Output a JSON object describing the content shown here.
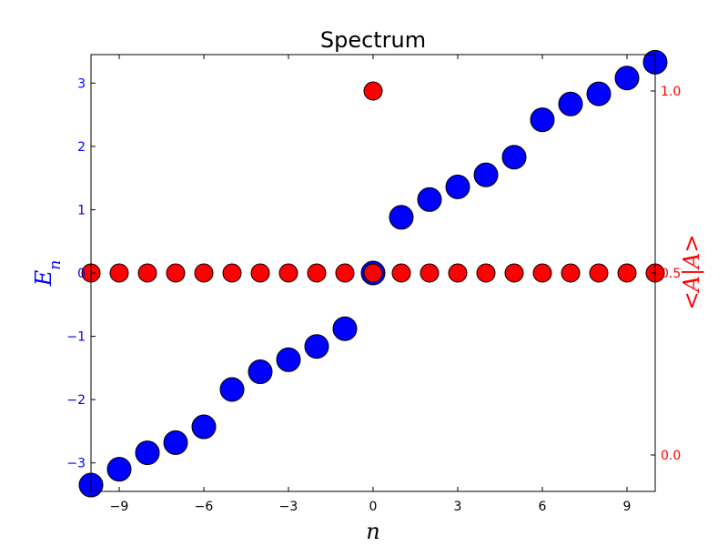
{
  "chart_data": {
    "type": "scatter",
    "title": "Spectrum",
    "xlabel": "n",
    "ylabel_left": {
      "base": "E",
      "sub": "n"
    },
    "ylabel_right": "<A|A>",
    "xlim": [
      -10,
      10
    ],
    "ylim_left": [
      -3.45,
      3.45
    ],
    "ylim_right": [
      -0.1,
      1.1
    ],
    "xticks": [
      -9,
      -6,
      -3,
      0,
      3,
      6,
      9
    ],
    "xtick_labels": [
      "−9",
      "−6",
      "−3",
      "0",
      "3",
      "6",
      "9"
    ],
    "yticks_left": [
      -3,
      -2,
      -1,
      0,
      1,
      2,
      3
    ],
    "ytick_labels_left": [
      "−3",
      "−2",
      "−1",
      "0",
      "1",
      "2",
      "3"
    ],
    "yticks_right": [
      0.0,
      0.5,
      1.0
    ],
    "ytick_labels_right": [
      "0.0",
      "0.5",
      "1.0"
    ],
    "grid": false,
    "series": [
      {
        "axis": "left",
        "color": "#0000ff",
        "x": [
          -10,
          -9,
          -8,
          -7,
          -6,
          -5,
          -4,
          -3,
          -2,
          -1,
          0,
          1,
          2,
          3,
          4,
          5,
          6,
          7,
          8,
          9,
          10
        ],
        "y": [
          -3.35,
          -3.1,
          -2.84,
          -2.68,
          -2.43,
          -1.84,
          -1.56,
          -1.37,
          -1.16,
          -0.88,
          0.0,
          0.88,
          1.16,
          1.36,
          1.55,
          1.83,
          2.42,
          2.67,
          2.83,
          3.08,
          3.33
        ]
      },
      {
        "axis": "right",
        "color": "#ff0000",
        "x": [
          -10,
          -9,
          -8,
          -7,
          -6,
          -5,
          -4,
          -3,
          -2,
          -1,
          0,
          0,
          1,
          2,
          3,
          4,
          5,
          6,
          7,
          8,
          9,
          10
        ],
        "y": [
          0.5,
          0.5,
          0.5,
          0.5,
          0.5,
          0.5,
          0.5,
          0.5,
          0.5,
          0.5,
          0.5,
          1.0,
          0.5,
          0.5,
          0.5,
          0.5,
          0.5,
          0.5,
          0.5,
          0.5,
          0.5,
          0.5
        ]
      }
    ]
  }
}
